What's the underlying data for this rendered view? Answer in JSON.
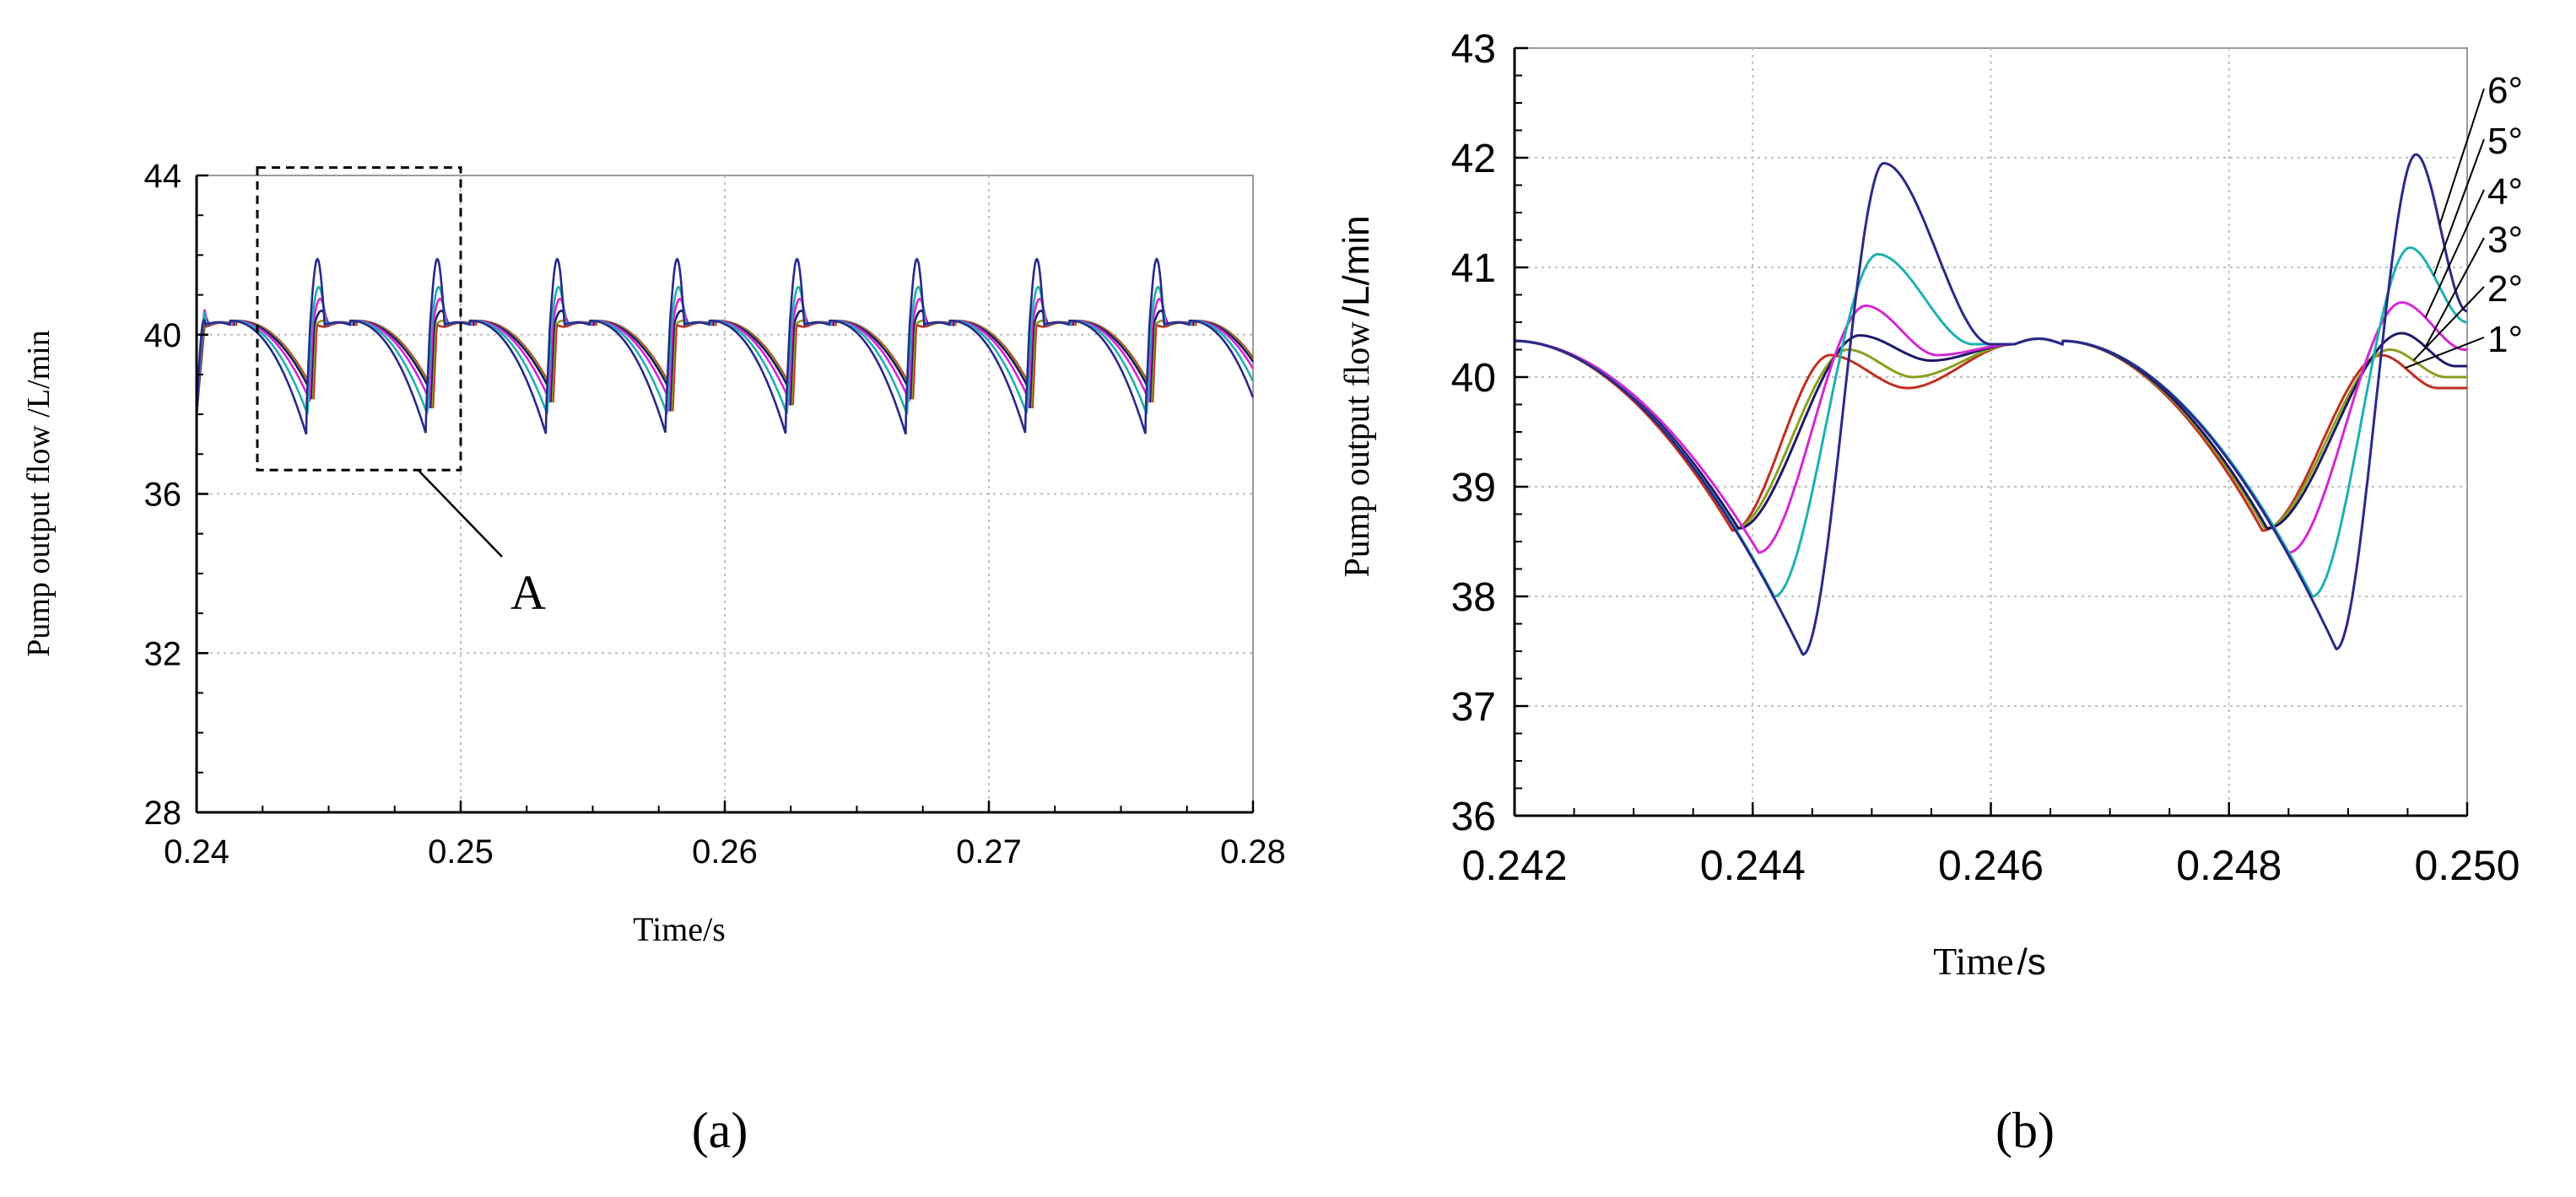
{
  "chart_data": [
    {
      "type": "line",
      "panel_label": "(a)",
      "xlabel": "Time/s",
      "ylabel": "Pump output flow /L/min",
      "xlim": [
        0.24,
        0.28
      ],
      "ylim": [
        28,
        44
      ],
      "xticks": [
        "0.24",
        "0.25",
        "0.26",
        "0.27",
        "0.28"
      ],
      "yticks": [
        "28",
        "32",
        "36",
        "40",
        "44"
      ],
      "grid": true,
      "period": 0.00454,
      "first_trough": 0.2444,
      "annotation": {
        "label": "A",
        "box_x": [
          0.2423,
          0.25
        ],
        "box_y": [
          36.6,
          44.2
        ]
      },
      "series": [
        {
          "name": "1°",
          "color": "#c03020",
          "trough": 38.6,
          "peak": 40.2
        },
        {
          "name": "2°",
          "color": "#8aa020",
          "trough": 38.6,
          "peak": 40.35
        },
        {
          "name": "3°",
          "color": "#1e1a66",
          "trough": 38.6,
          "peak": 40.6
        },
        {
          "name": "4°",
          "color": "#d428d4",
          "trough": 38.4,
          "peak": 40.9
        },
        {
          "name": "5°",
          "color": "#20b0b0",
          "trough": 38.0,
          "peak": 41.2
        },
        {
          "name": "6°",
          "color": "#2a2a8a",
          "trough": 37.5,
          "peak": 41.9
        }
      ]
    },
    {
      "type": "line",
      "panel_label": "(b)",
      "xlabel_main": "Time",
      "xlabel_unit": "/s",
      "ylabel_main": "Pump output flow",
      "ylabel_unit": "/L/min",
      "xlim": [
        0.242,
        0.25
      ],
      "ylim": [
        36,
        43
      ],
      "xticks": [
        "0.242",
        "0.244",
        "0.246",
        "0.248",
        "0.250"
      ],
      "yticks": [
        "36",
        "37",
        "38",
        "39",
        "40",
        "41",
        "42",
        "43"
      ],
      "grid": true,
      "series": [
        {
          "name": "1°",
          "color": "#c03020",
          "troughs": [
            [
              0.24383,
              38.6
            ],
            [
              0.24828,
              38.6
            ]
          ],
          "peaks": [
            [
              0.24465,
              40.2
            ],
            [
              0.24928,
              40.2
            ]
          ],
          "dips": [
            [
              0.2453,
              39.9
            ],
            [
              0.24975,
              39.9
            ]
          ]
        },
        {
          "name": "2°",
          "color": "#8aa020",
          "troughs": [
            [
              0.24385,
              38.62
            ],
            [
              0.2483,
              38.62
            ]
          ],
          "peaks": [
            [
              0.2448,
              40.25
            ],
            [
              0.24935,
              40.25
            ]
          ],
          "dips": [
            [
              0.24535,
              40.0
            ],
            [
              0.24982,
              40.0
            ]
          ]
        },
        {
          "name": "3°",
          "color": "#1e1a66",
          "troughs": [
            [
              0.24388,
              38.62
            ],
            [
              0.24832,
              38.62
            ]
          ],
          "peaks": [
            [
              0.2449,
              40.38
            ],
            [
              0.24945,
              40.4
            ]
          ],
          "dips": [
            [
              0.2455,
              40.15
            ],
            [
              0.2499,
              40.1
            ]
          ]
        },
        {
          "name": "4°",
          "color": "#d428d4",
          "troughs": [
            [
              0.24405,
              38.4
            ],
            [
              0.2485,
              38.4
            ]
          ],
          "peaks": [
            [
              0.24495,
              40.65
            ],
            [
              0.24945,
              40.68
            ]
          ],
          "dips": [
            [
              0.24555,
              40.2
            ],
            [
              0.24998,
              40.25
            ]
          ]
        },
        {
          "name": "5°",
          "color": "#20b0b0",
          "troughs": [
            [
              0.24418,
              38.0
            ],
            [
              0.2487,
              38.0
            ]
          ],
          "peaks": [
            [
              0.24505,
              41.12
            ],
            [
              0.24952,
              41.18
            ]
          ],
          "dips": [
            [
              0.24585,
              40.3
            ],
            [
              0.25,
              40.5
            ]
          ]
        },
        {
          "name": "6°",
          "color": "#2a2a8a",
          "troughs": [
            [
              0.24442,
              37.47
            ],
            [
              0.2489,
              37.52
            ]
          ],
          "peaks": [
            [
              0.2451,
              41.95
            ],
            [
              0.24957,
              42.03
            ]
          ],
          "dips": [
            [
              0.246,
              40.3
            ],
            [
              0.25,
              40.6
            ]
          ]
        }
      ]
    }
  ]
}
